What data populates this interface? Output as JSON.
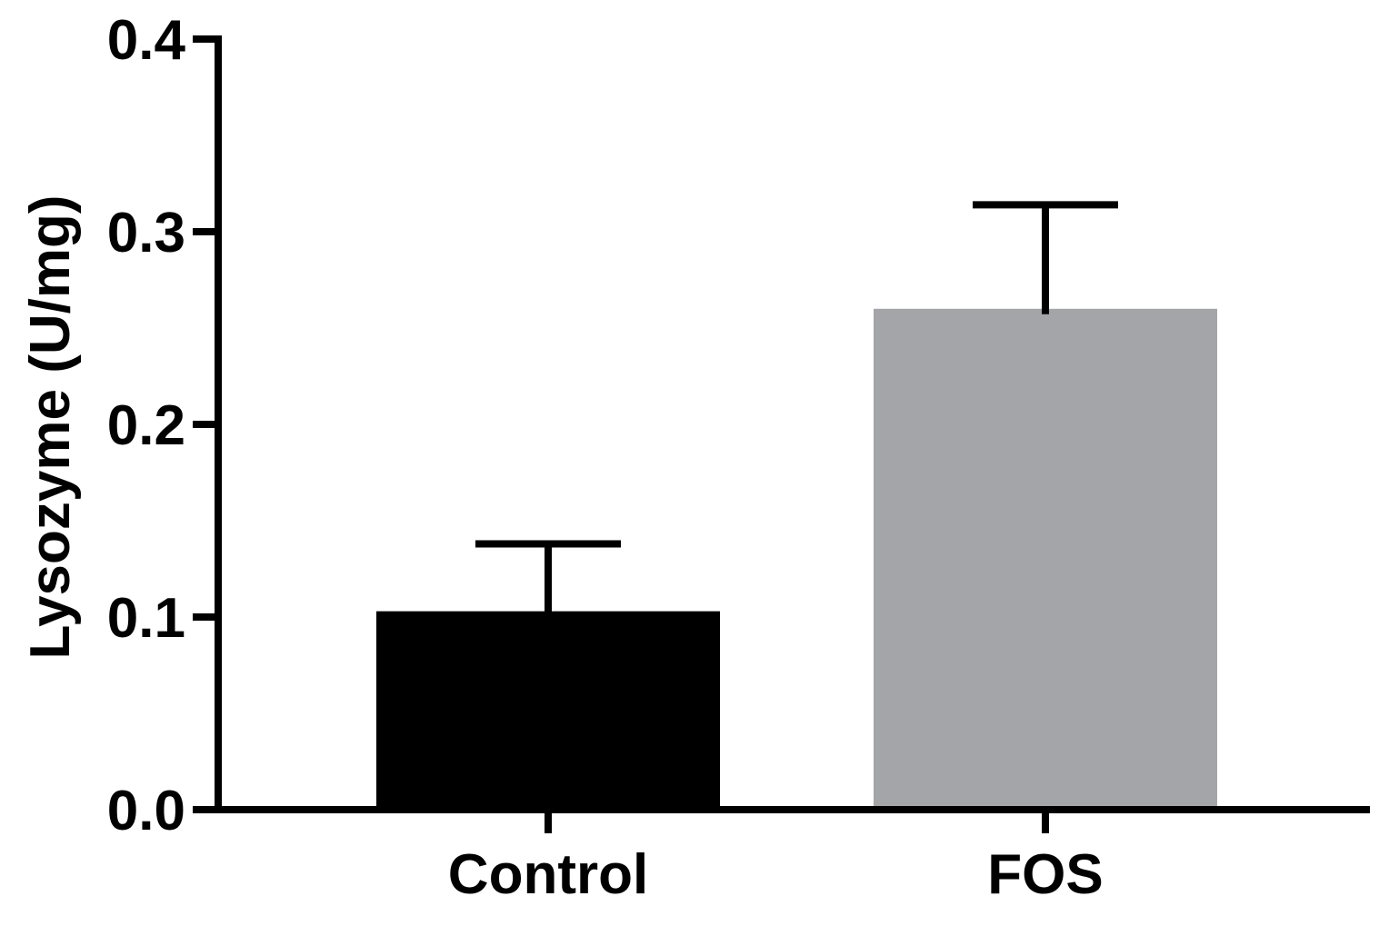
{
  "chart_data": {
    "type": "bar",
    "title": "",
    "xlabel": "",
    "ylabel": "Lysozyme (U/mg)",
    "ylim": [
      0,
      0.4
    ],
    "yticks": [
      "0.0",
      "0.1",
      "0.2",
      "0.3",
      "0.4"
    ],
    "grid": false,
    "legend": "none",
    "categories": [
      "Control",
      "FOS"
    ],
    "values": [
      0.103,
      0.26
    ],
    "error_plus": [
      0.035,
      0.054
    ],
    "colors": [
      "#000000",
      "#a4a5a8"
    ],
    "axis_color": "#000000"
  }
}
